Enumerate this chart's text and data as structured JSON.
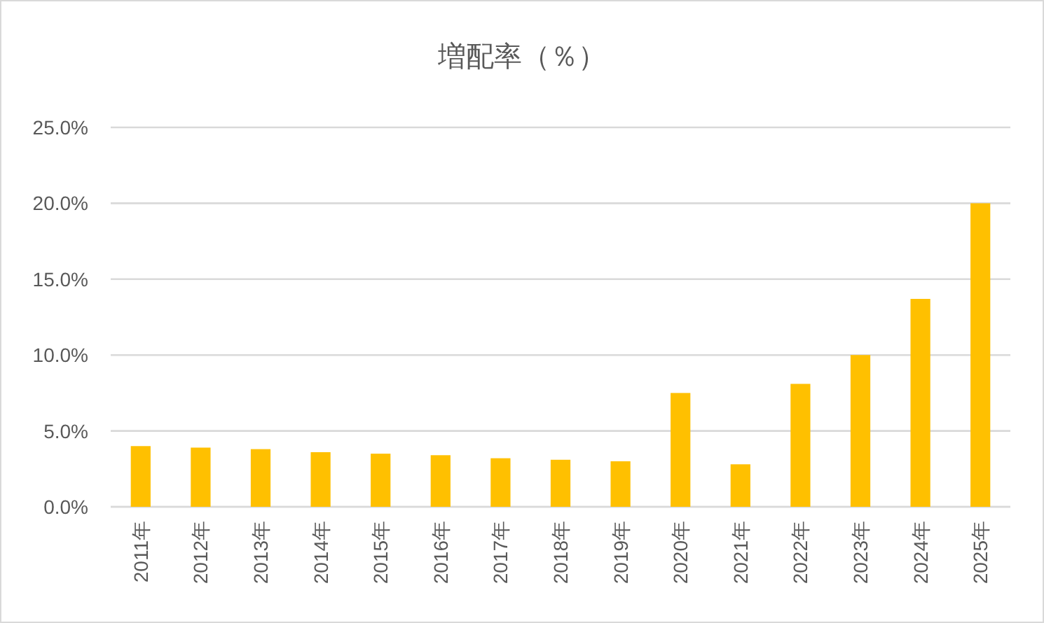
{
  "chart_data": {
    "type": "bar",
    "title": "増配率（％）",
    "categories": [
      "2011年",
      "2012年",
      "2013年",
      "2014年",
      "2015年",
      "2016年",
      "2017年",
      "2018年",
      "2019年",
      "2020年",
      "2021年",
      "2022年",
      "2023年",
      "2024年",
      "2025年"
    ],
    "values": [
      4.0,
      3.9,
      3.8,
      3.6,
      3.5,
      3.4,
      3.2,
      3.1,
      3.0,
      7.5,
      2.8,
      8.1,
      10.0,
      13.7,
      20.0
    ],
    "color": "#ffc000",
    "ylim": [
      0,
      25
    ],
    "yticks": [
      {
        "value": 0,
        "label": "0.0%"
      },
      {
        "value": 5,
        "label": "5.0%"
      },
      {
        "value": 10,
        "label": "10.0%"
      },
      {
        "value": 15,
        "label": "15.0%"
      },
      {
        "value": 20,
        "label": "20.0%"
      },
      {
        "value": 25,
        "label": "25.0%"
      }
    ],
    "grid": "y"
  }
}
